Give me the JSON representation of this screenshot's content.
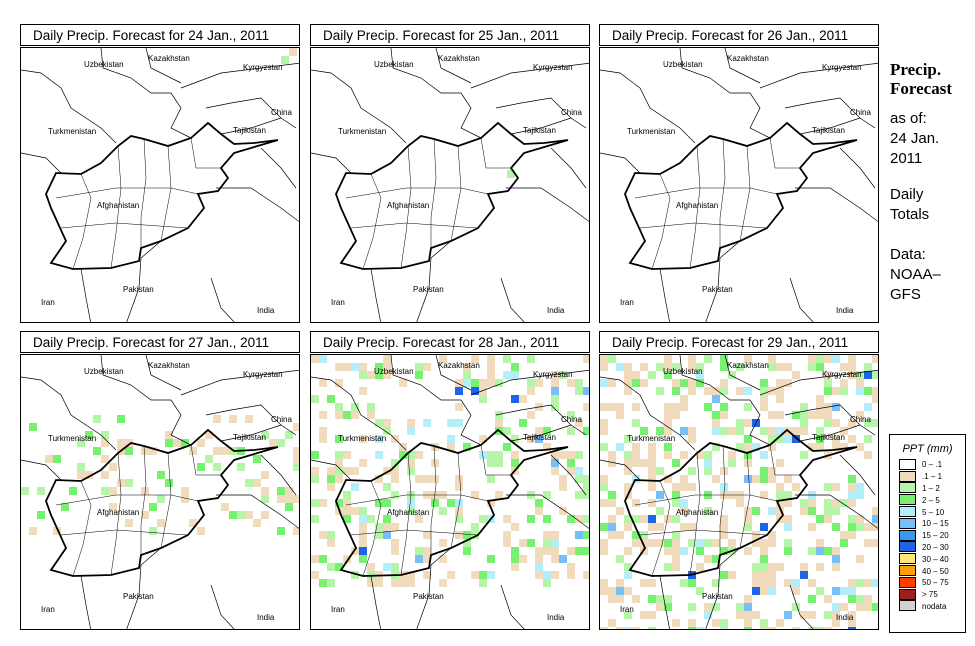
{
  "panels": [
    {
      "title": "Daily Precip. Forecast for  24 Jan., 2011"
    },
    {
      "title": "Daily Precip. Forecast for  25 Jan., 2011"
    },
    {
      "title": "Daily Precip. Forecast for  26 Jan., 2011"
    },
    {
      "title": "Daily Precip. Forecast for  27 Jan., 2011"
    },
    {
      "title": "Daily Precip. Forecast for  28 Jan., 2011"
    },
    {
      "title": "Daily Precip. Forecast for  29 Jan., 2011"
    }
  ],
  "countries": [
    "Uzbekistan",
    "Kazakhstan",
    "Kyrgyzstan",
    "China",
    "Turkmenistan",
    "Tajikistan",
    "Afghanistan",
    "Pakistan",
    "Iran",
    "India"
  ],
  "side": {
    "title1": "Precip.",
    "title2": "Forecast",
    "asof": "as of:",
    "date1": "24 Jan.",
    "date2": "2011",
    "daily1": "Daily",
    "daily2": "Totals",
    "data1": "Data:",
    "data2": "NOAA–",
    "data3": "GFS"
  },
  "legend": {
    "title": "PPT (mm)",
    "items": [
      {
        "label": "0 – .1",
        "color": "#ffffff"
      },
      {
        "label": ".1 – 1",
        "color": "#f0dcbc"
      },
      {
        "label": "1 – 2",
        "color": "#b4f5a8"
      },
      {
        "label": "2 – 5",
        "color": "#78f070"
      },
      {
        "label": "5 – 10",
        "color": "#b4eef8"
      },
      {
        "label": "10 – 15",
        "color": "#78bef8"
      },
      {
        "label": "15 – 20",
        "color": "#3c96f0"
      },
      {
        "label": "20 – 30",
        "color": "#1e64e6"
      },
      {
        "label": "30 – 40",
        "color": "#ffe678"
      },
      {
        "label": "40 – 50",
        "color": "#ffa000"
      },
      {
        "label": "50 – 75",
        "color": "#ff3c00"
      },
      {
        "label": "> 75",
        "color": "#a01e1e"
      },
      {
        "label": "nodata",
        "color": "#d2d2d2"
      }
    ]
  }
}
